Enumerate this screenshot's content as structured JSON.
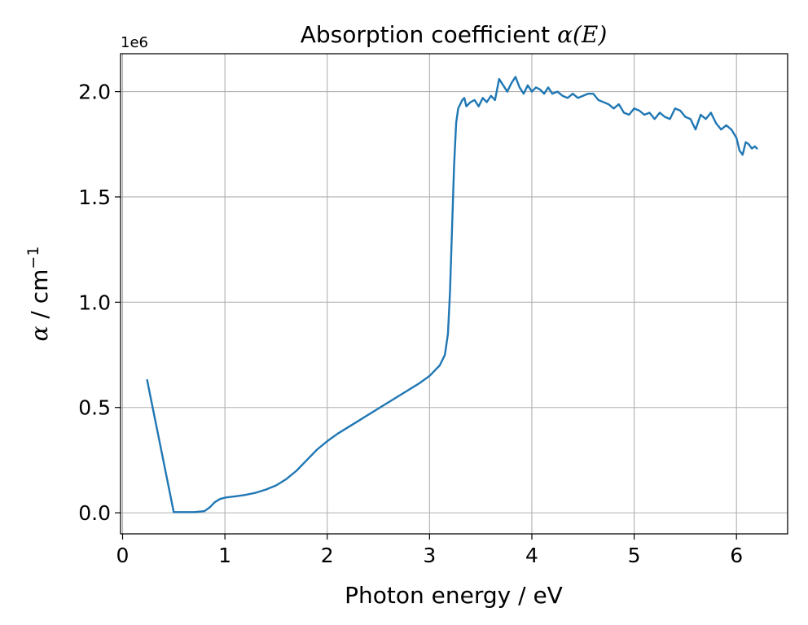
{
  "chart_data": {
    "type": "line",
    "title_prefix": "Absorption coefficient ",
    "title_math": "α(E)",
    "xlabel": "Photon energy / eV",
    "ylabel_symbol": "α",
    "ylabel_unit": " / cm",
    "ylabel_exp": "−1",
    "offset_text": "1e6",
    "xlim": [
      -0.02,
      6.5
    ],
    "ylim": [
      -0.1,
      2.18
    ],
    "y_scale": 1000000,
    "grid": true,
    "x_ticks": [
      0,
      1,
      2,
      3,
      4,
      5,
      6
    ],
    "x_tick_labels": [
      "0",
      "1",
      "2",
      "3",
      "4",
      "5",
      "6"
    ],
    "y_ticks": [
      0.0,
      0.5,
      1.0,
      1.5,
      2.0
    ],
    "y_tick_labels": [
      "0.0",
      "0.5",
      "1.0",
      "1.5",
      "2.0"
    ],
    "colors": {
      "line": "#1f77b4",
      "grid": "#b0b0b0",
      "axes": "#000000"
    },
    "series": [
      {
        "name": "alpha",
        "x": [
          0.24,
          0.5,
          0.6,
          0.7,
          0.8,
          0.85,
          0.9,
          0.95,
          1.0,
          1.1,
          1.2,
          1.3,
          1.4,
          1.5,
          1.6,
          1.7,
          1.8,
          1.9,
          2.0,
          2.1,
          2.2,
          2.3,
          2.4,
          2.5,
          2.6,
          2.7,
          2.8,
          2.9,
          3.0,
          3.05,
          3.1,
          3.15,
          3.18,
          3.2,
          3.22,
          3.24,
          3.26,
          3.28,
          3.3,
          3.32,
          3.34,
          3.36,
          3.4,
          3.44,
          3.48,
          3.52,
          3.56,
          3.6,
          3.64,
          3.68,
          3.72,
          3.76,
          3.8,
          3.84,
          3.88,
          3.92,
          3.96,
          4.0,
          4.04,
          4.08,
          4.12,
          4.16,
          4.2,
          4.25,
          4.3,
          4.35,
          4.4,
          4.45,
          4.5,
          4.55,
          4.6,
          4.65,
          4.7,
          4.75,
          4.8,
          4.85,
          4.9,
          4.95,
          5.0,
          5.05,
          5.1,
          5.15,
          5.2,
          5.25,
          5.3,
          5.35,
          5.4,
          5.45,
          5.5,
          5.55,
          5.6,
          5.65,
          5.7,
          5.75,
          5.8,
          5.85,
          5.9,
          5.95,
          6.0,
          6.03,
          6.06,
          6.09,
          6.12,
          6.15,
          6.18,
          6.2
        ],
        "values": [
          0.63,
          0.003,
          0.003,
          0.003,
          0.008,
          0.025,
          0.05,
          0.065,
          0.072,
          0.078,
          0.085,
          0.095,
          0.11,
          0.13,
          0.16,
          0.2,
          0.25,
          0.3,
          0.34,
          0.375,
          0.405,
          0.435,
          0.465,
          0.495,
          0.525,
          0.555,
          0.585,
          0.615,
          0.65,
          0.675,
          0.7,
          0.75,
          0.85,
          1.05,
          1.35,
          1.65,
          1.85,
          1.92,
          1.94,
          1.96,
          1.97,
          1.93,
          1.95,
          1.96,
          1.93,
          1.97,
          1.95,
          1.98,
          1.96,
          2.06,
          2.03,
          2.0,
          2.04,
          2.07,
          2.02,
          1.99,
          2.03,
          2.0,
          2.02,
          2.01,
          1.99,
          2.02,
          1.99,
          2.0,
          1.98,
          1.97,
          1.99,
          1.97,
          1.98,
          1.99,
          1.99,
          1.96,
          1.95,
          1.94,
          1.92,
          1.94,
          1.9,
          1.89,
          1.92,
          1.91,
          1.89,
          1.9,
          1.87,
          1.9,
          1.88,
          1.87,
          1.92,
          1.91,
          1.88,
          1.87,
          1.82,
          1.89,
          1.87,
          1.9,
          1.85,
          1.82,
          1.84,
          1.82,
          1.78,
          1.72,
          1.7,
          1.76,
          1.75,
          1.73,
          1.74,
          1.73
        ]
      }
    ]
  }
}
